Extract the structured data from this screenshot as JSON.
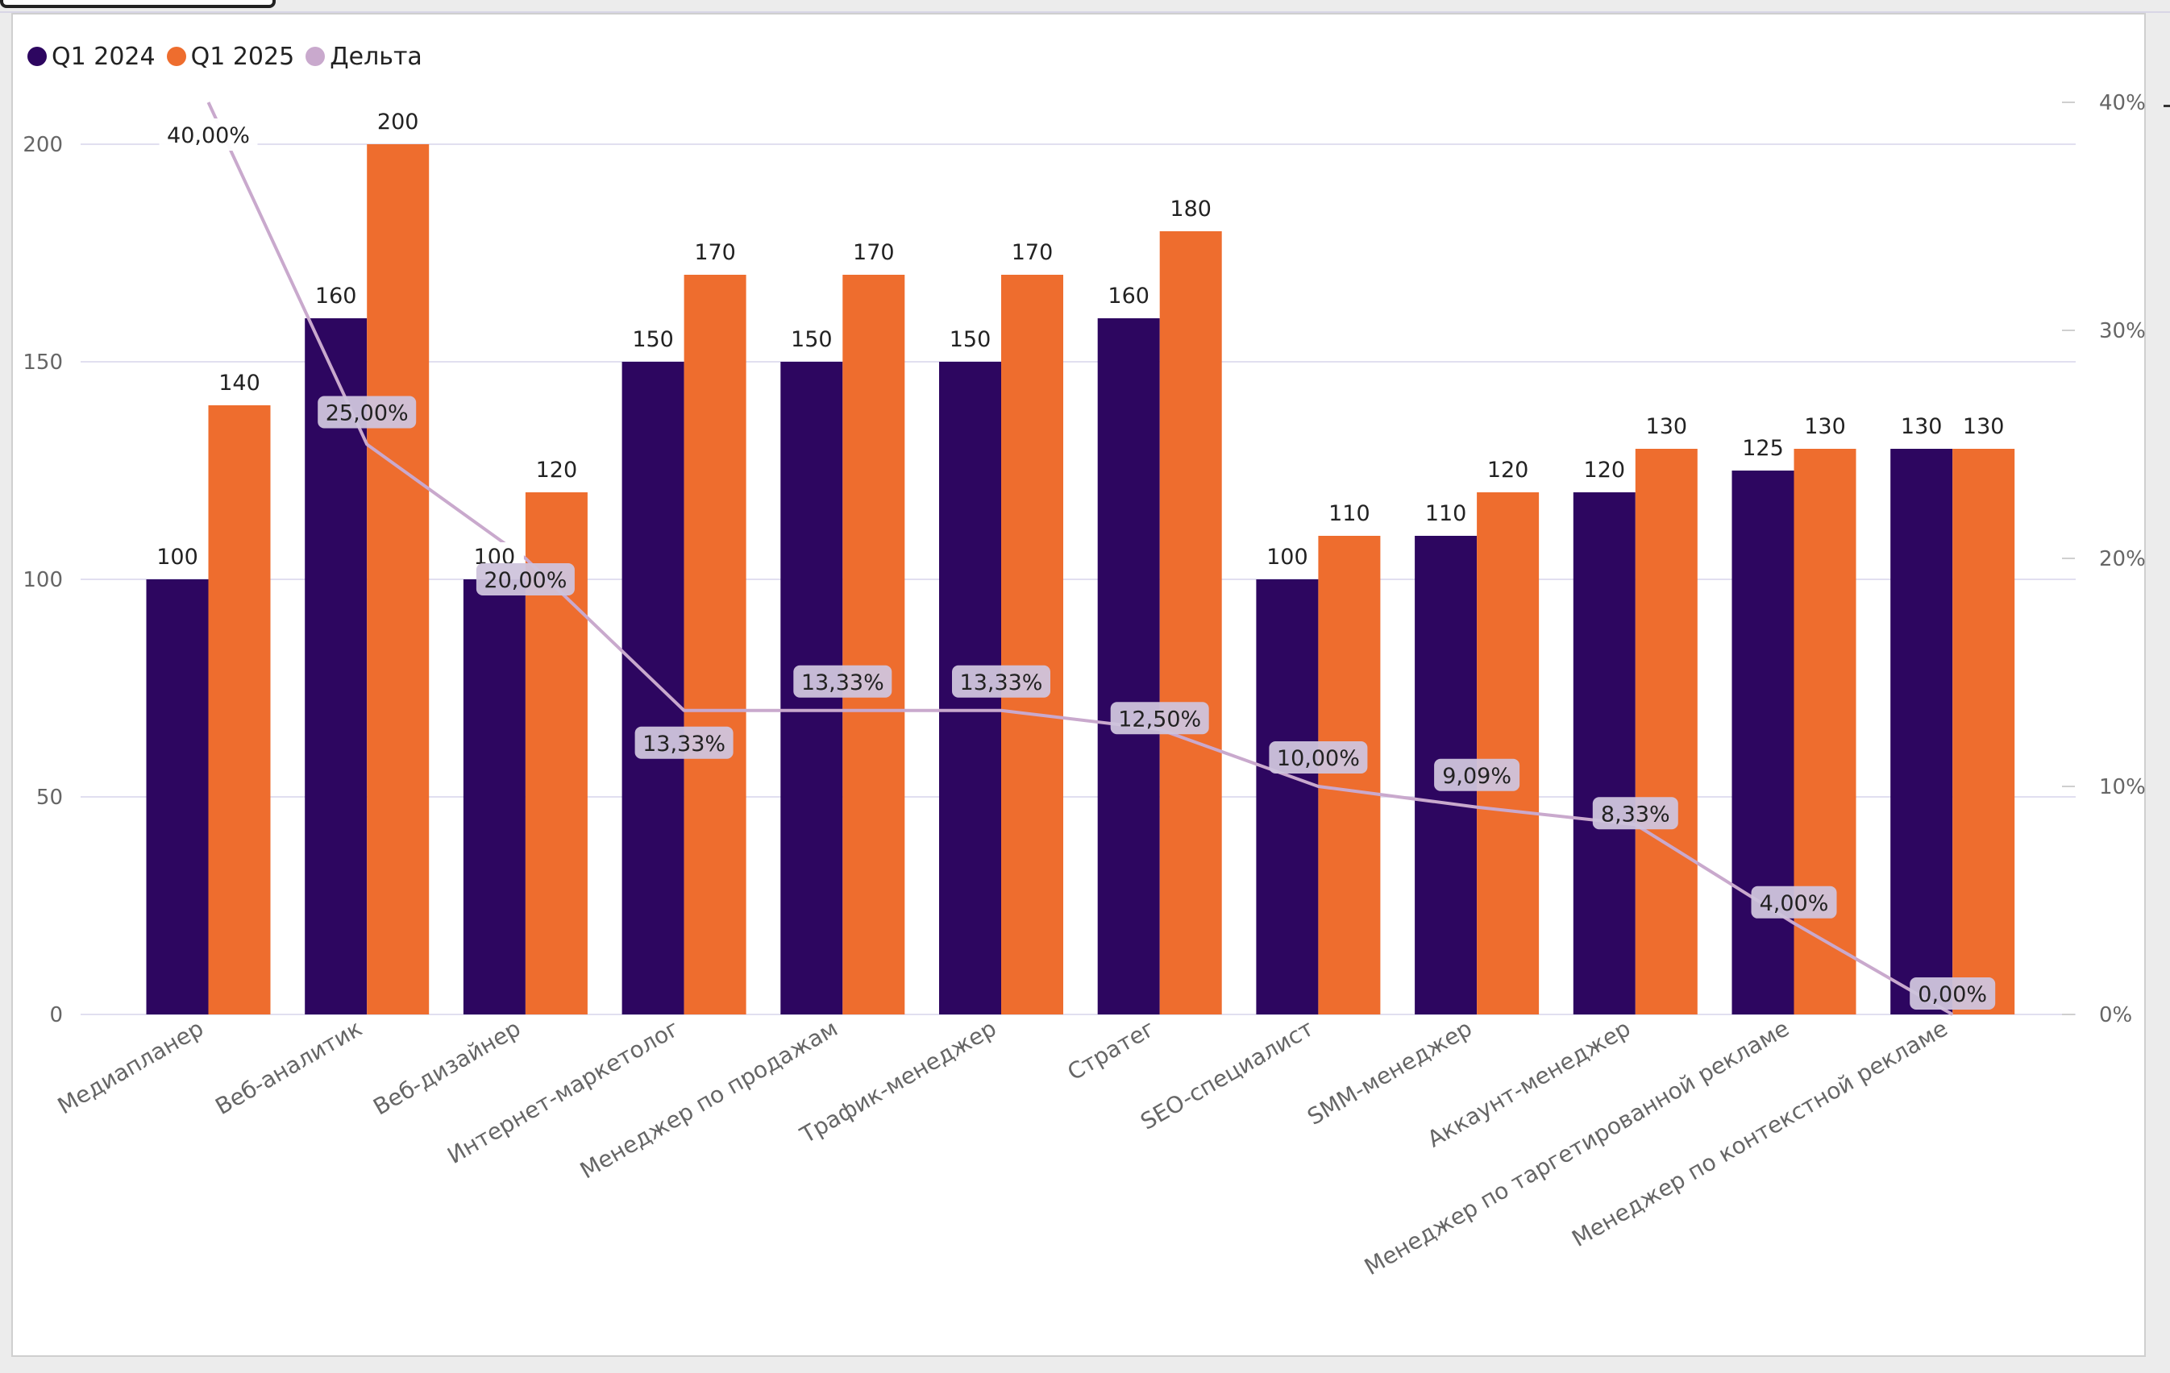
{
  "colors": {
    "q1_2024": "#2d0660",
    "q1_2025": "#ee6d2e",
    "delta_line": "#c9a9cd",
    "grid": "#e1dff0",
    "axis_text": "#666666",
    "label_text": "#222222",
    "delta_label_bg": "#cfc4dc",
    "value_label_bg": "#ffffff"
  },
  "legend": {
    "items": [
      {
        "label": "Q1 2024",
        "color": "#2d0660"
      },
      {
        "label": "Q1 2025",
        "color": "#ee6d2e"
      },
      {
        "label": "Дельта",
        "color": "#c9a9cd"
      }
    ]
  },
  "chart_data": {
    "type": "bar",
    "title": "",
    "xlabel": "",
    "ylabel": "",
    "categories": [
      "Медиапланер",
      "Веб-аналитик",
      "Веб-дизайнер",
      "Интернет-маркетолог",
      "Менеджер по продажам",
      "Трафик-менеджер",
      "Стратег",
      "SEO-специалист",
      "SMM-менеджер",
      "Аккаунт-менеджер",
      "Менеджер по таргетированной рекламе",
      "Менеджер по контекстной рекламе"
    ],
    "series": [
      {
        "name": "Q1 2024",
        "type": "bar",
        "axis": "left",
        "values": [
          100,
          160,
          100,
          150,
          150,
          150,
          160,
          100,
          110,
          120,
          125,
          130
        ],
        "labels": [
          "100",
          "160",
          "100",
          "150",
          "150",
          "150",
          "160",
          "100",
          "110",
          "120",
          "125",
          "130"
        ]
      },
      {
        "name": "Q1 2025",
        "type": "bar",
        "axis": "left",
        "values": [
          140,
          200,
          120,
          170,
          170,
          170,
          180,
          110,
          120,
          130,
          130,
          130
        ],
        "labels": [
          "140",
          "200",
          "120",
          "170",
          "170",
          "170",
          "180",
          "110",
          "120",
          "130",
          "130",
          "130"
        ]
      },
      {
        "name": "Дельта",
        "type": "line",
        "axis": "right",
        "values": [
          40.0,
          25.0,
          20.0,
          13.33,
          13.33,
          13.33,
          12.5,
          10.0,
          9.09,
          8.33,
          4.0,
          0.0
        ],
        "labels": [
          "40,00%",
          "25,00%",
          "20,00%",
          "13,33%",
          "13,33%",
          "13,33%",
          "12,50%",
          "10,00%",
          "9,09%",
          "8,33%",
          "4,00%",
          "0,00%"
        ]
      }
    ],
    "ylim": [
      0,
      200
    ],
    "y_ticks": [
      0,
      50,
      100,
      150,
      200
    ],
    "y_tick_labels": [
      "0",
      "50",
      "100",
      "150",
      "200"
    ],
    "y2lim": [
      0,
      40
    ],
    "y2_ticks": [
      0,
      10,
      20,
      30,
      40
    ],
    "y2_tick_labels": [
      "0%",
      "10%",
      "20%",
      "30%",
      "40%"
    ],
    "grid": true,
    "legend_position": "top-left"
  }
}
